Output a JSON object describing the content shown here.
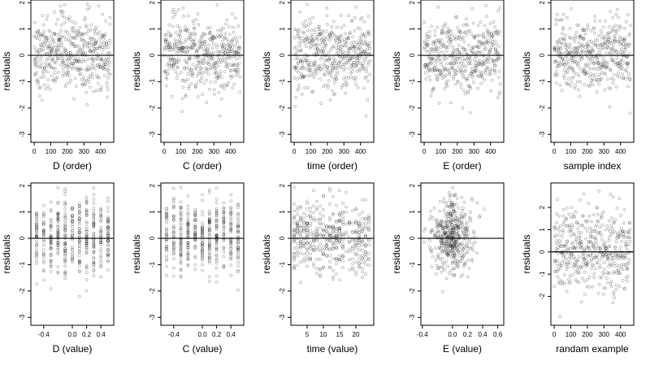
{
  "page": {
    "background": "#ffffff",
    "point_color": "#000000"
  },
  "chart_data": [
    {
      "type": "scatter",
      "xlabel": "D (order)",
      "ylabel": "residuals",
      "xlim": [
        -20,
        480
      ],
      "ylim": [
        -3.3,
        2.1
      ],
      "xticks": [
        0,
        100,
        200,
        300,
        400
      ],
      "xtick_labels": [
        "0",
        "100",
        "200",
        "300",
        "400"
      ],
      "yticks": [
        -3,
        -2,
        -1,
        0,
        1,
        2
      ],
      "ytick_labels": [
        "-3",
        "-2",
        "-1",
        "0",
        "1",
        "2"
      ],
      "reference_line": 0,
      "x_kind": "index",
      "n_points": 460,
      "y_center": 0.05,
      "y_spread": 0.7
    },
    {
      "type": "scatter",
      "xlabel": "C (order)",
      "ylabel": "residuals",
      "xlim": [
        -20,
        480
      ],
      "ylim": [
        -3.3,
        2.1
      ],
      "xticks": [
        0,
        100,
        200,
        300,
        400
      ],
      "xtick_labels": [
        "0",
        "100",
        "200",
        "300",
        "400"
      ],
      "yticks": [
        -3,
        -2,
        -1,
        0,
        1,
        2
      ],
      "ytick_labels": [
        "-3",
        "-2",
        "-1",
        "0",
        "1",
        "2"
      ],
      "reference_line": 0,
      "x_kind": "index",
      "n_points": 460,
      "y_center": 0.05,
      "y_spread": 0.7
    },
    {
      "type": "scatter",
      "xlabel": "time (order)",
      "ylabel": "residuals",
      "xlim": [
        -20,
        480
      ],
      "ylim": [
        -3.3,
        2.1
      ],
      "xticks": [
        0,
        100,
        200,
        300,
        400
      ],
      "xtick_labels": [
        "0",
        "100",
        "200",
        "300",
        "400"
      ],
      "yticks": [
        -3,
        -2,
        -1,
        0,
        1,
        2
      ],
      "ytick_labels": [
        "-3",
        "-2",
        "-1",
        "0",
        "1",
        "2"
      ],
      "reference_line": 0,
      "x_kind": "index",
      "n_points": 460,
      "y_center": 0.05,
      "y_spread": 0.7
    },
    {
      "type": "scatter",
      "xlabel": "E (order)",
      "ylabel": "residuals",
      "xlim": [
        -20,
        480
      ],
      "ylim": [
        -3.3,
        2.1
      ],
      "xticks": [
        0,
        100,
        200,
        300,
        400
      ],
      "xtick_labels": [
        "0",
        "100",
        "200",
        "300",
        "400"
      ],
      "yticks": [
        -3,
        -2,
        -1,
        0,
        1,
        2
      ],
      "ytick_labels": [
        "-3",
        "-2",
        "-1",
        "0",
        "1",
        "2"
      ],
      "reference_line": 0,
      "x_kind": "index",
      "n_points": 460,
      "y_center": 0.05,
      "y_spread": 0.7
    },
    {
      "type": "scatter",
      "xlabel": "sample index",
      "ylabel": "residuals",
      "xlim": [
        -20,
        480
      ],
      "ylim": [
        -3.3,
        2.1
      ],
      "xticks": [
        0,
        100,
        200,
        300,
        400
      ],
      "xtick_labels": [
        "0",
        "100",
        "200",
        "300",
        "400"
      ],
      "yticks": [
        -3,
        -2,
        -1,
        0,
        1,
        2
      ],
      "ytick_labels": [
        "-3",
        "-2",
        "-1",
        "0",
        "1",
        "2"
      ],
      "reference_line": 0,
      "x_kind": "index",
      "n_points": 460,
      "y_center": 0.05,
      "y_spread": 0.7
    },
    {
      "type": "scatter",
      "xlabel": "D (value)",
      "ylabel": "residuals",
      "xlim": [
        -0.58,
        0.58
      ],
      "ylim": [
        -3.3,
        2.1
      ],
      "xticks": [
        -0.4,
        0.0,
        0.2,
        0.4
      ],
      "xtick_labels": [
        "-0.4",
        "0.0",
        "0.2",
        "0.4"
      ],
      "yticks": [
        -3,
        -2,
        -1,
        0,
        1,
        2
      ],
      "ytick_labels": [
        "-3",
        "-2",
        "-1",
        "0",
        "1",
        "2"
      ],
      "reference_line": 0,
      "x_kind": "values",
      "x_values": [
        -0.5,
        -0.4,
        -0.3,
        -0.2,
        -0.1,
        0.0,
        0.1,
        0.2,
        0.3,
        0.4,
        0.5
      ],
      "n_points": 460,
      "y_center": 0.05,
      "y_spread": 0.7
    },
    {
      "type": "scatter",
      "xlabel": "C (value)",
      "ylabel": "residuals",
      "xlim": [
        -0.58,
        0.58
      ],
      "ylim": [
        -3.3,
        2.1
      ],
      "xticks": [
        -0.4,
        0.0,
        0.2,
        0.4
      ],
      "xtick_labels": [
        "-0.4",
        "0.0",
        "0.2",
        "0.4"
      ],
      "yticks": [
        -3,
        -2,
        -1,
        0,
        1,
        2
      ],
      "ytick_labels": [
        "-3",
        "-2",
        "-1",
        "0",
        "1",
        "2"
      ],
      "reference_line": 0,
      "x_kind": "values",
      "x_values": [
        -0.5,
        -0.4,
        -0.3,
        -0.2,
        -0.1,
        0.0,
        0.1,
        0.2,
        0.3,
        0.4,
        0.5
      ],
      "n_points": 460,
      "y_center": 0.05,
      "y_spread": 0.7
    },
    {
      "type": "scatter",
      "xlabel": "time (value)",
      "ylabel": "residuals",
      "xlim": [
        0,
        25.5
      ],
      "ylim": [
        -3.3,
        2.1
      ],
      "xticks": [
        5,
        10,
        15,
        20
      ],
      "xtick_labels": [
        "5",
        "10",
        "15",
        "20"
      ],
      "yticks": [
        -3,
        -2,
        -1,
        0,
        1,
        2
      ],
      "ytick_labels": [
        "-3",
        "-2",
        "-1",
        "0",
        "1",
        "2"
      ],
      "reference_line": 0,
      "x_kind": "values",
      "x_values": [
        1,
        2,
        3,
        4,
        5,
        6,
        7,
        8,
        9,
        10,
        11,
        12,
        13,
        14,
        15,
        16,
        17,
        18,
        19,
        20,
        21,
        22,
        23,
        24
      ],
      "n_points": 460,
      "y_center": 0.05,
      "y_spread": 0.7
    },
    {
      "type": "scatter",
      "xlabel": "E (value)",
      "ylabel": "residuals",
      "xlim": [
        -0.42,
        0.68
      ],
      "ylim": [
        -3.3,
        2.1
      ],
      "xticks": [
        -0.4,
        0.0,
        0.2,
        0.4,
        0.6
      ],
      "xtick_labels": [
        "-0.4",
        "0.0",
        "0.2",
        "0.4",
        "0.6"
      ],
      "yticks": [
        -3,
        -2,
        -1,
        0,
        1,
        2
      ],
      "ytick_labels": [
        "-3",
        "-2",
        "-1",
        "0",
        "1",
        "2"
      ],
      "reference_line": 0,
      "x_kind": "continuous",
      "x_center": 0.0,
      "x_spread": 0.13,
      "n_points": 460,
      "y_center": 0.05,
      "y_spread": 0.7
    },
    {
      "type": "scatter",
      "xlabel": "randam example",
      "ylabel": "residuals",
      "xlim": [
        -20,
        480
      ],
      "ylim": [
        -3.3,
        3.1
      ],
      "xticks": [
        0,
        100,
        200,
        300,
        400
      ],
      "xtick_labels": [
        "0",
        "100",
        "200",
        "300",
        "400"
      ],
      "yticks": [
        -2,
        -1,
        0,
        1,
        2
      ],
      "ytick_labels": [
        "-2",
        "-1",
        "0",
        "1",
        "2"
      ],
      "reference_line": 0,
      "x_kind": "index",
      "n_points": 460,
      "y_center": 0.1,
      "y_spread": 1.0
    }
  ]
}
